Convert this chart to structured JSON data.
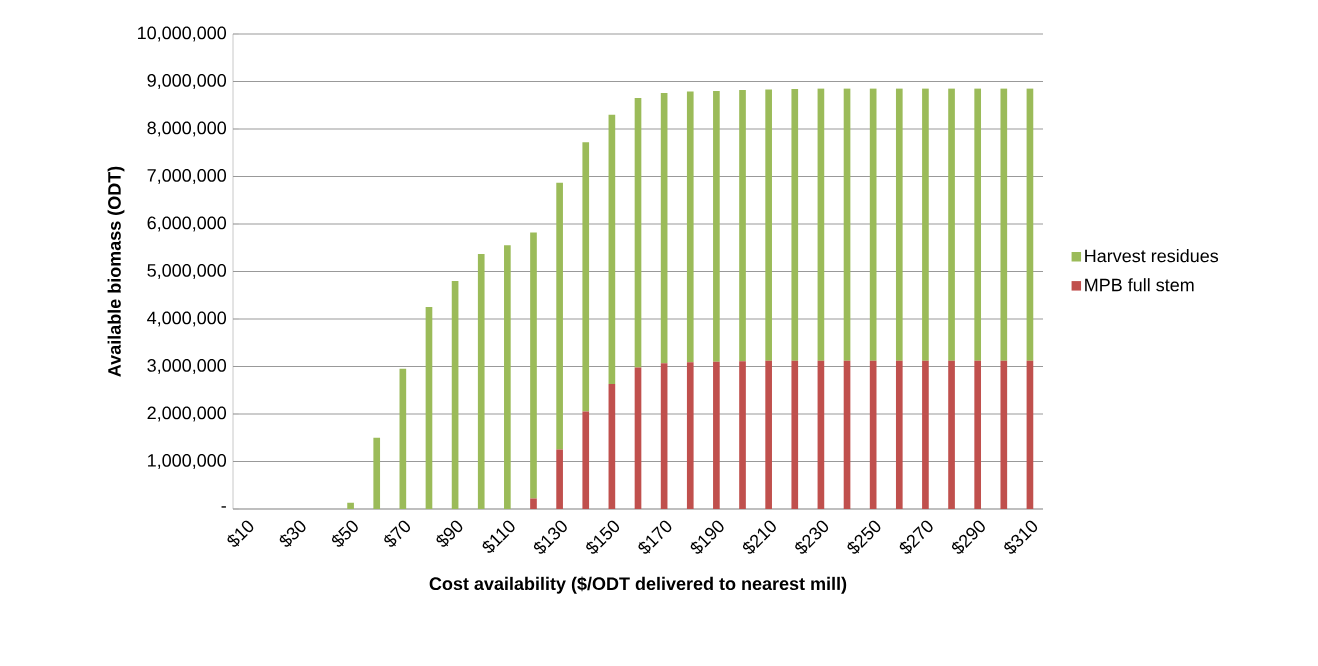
{
  "chart_data": {
    "type": "bar",
    "stacked": true,
    "xlabel": "Cost availability ($/ODT delivered to nearest mill)",
    "ylabel": "Available biomass (ODT)",
    "categories": [
      "$10",
      null,
      "$30",
      null,
      "$50",
      null,
      "$70",
      null,
      "$90",
      null,
      "$110",
      null,
      "$130",
      null,
      "$150",
      null,
      "$170",
      null,
      "$190",
      null,
      "$210",
      null,
      "$230",
      null,
      "$250",
      null,
      "$270",
      null,
      "$290",
      null,
      "$310"
    ],
    "series": [
      {
        "name": "MPB full stem",
        "color": "#c0504d",
        "values": [
          0,
          0,
          0,
          0,
          0,
          0,
          0,
          0,
          0,
          0,
          0,
          220000,
          1250000,
          2050000,
          2630000,
          2980000,
          3070000,
          3090000,
          3100000,
          3110000,
          3120000,
          3120000,
          3120000,
          3120000,
          3120000,
          3120000,
          3120000,
          3120000,
          3120000,
          3120000,
          3120000
        ]
      },
      {
        "name": "Harvest residues",
        "color": "#9bbb59",
        "values": [
          0,
          0,
          0,
          0,
          130000,
          1500000,
          2950000,
          4250000,
          4800000,
          5370000,
          5550000,
          5600000,
          5620000,
          5670000,
          5670000,
          5670000,
          5690000,
          5700000,
          5700000,
          5710000,
          5710000,
          5720000,
          5730000,
          5730000,
          5730000,
          5730000,
          5730000,
          5730000,
          5730000,
          5730000,
          5730000
        ]
      }
    ],
    "ylim": [
      0,
      10000000
    ],
    "yticks": [
      {
        "value": 0,
        "label": "-"
      },
      {
        "value": 1000000,
        "label": "1,000,000"
      },
      {
        "value": 2000000,
        "label": "2,000,000"
      },
      {
        "value": 3000000,
        "label": "3,000,000"
      },
      {
        "value": 4000000,
        "label": "4,000,000"
      },
      {
        "value": 5000000,
        "label": "5,000,000"
      },
      {
        "value": 6000000,
        "label": "6,000,000"
      },
      {
        "value": 7000000,
        "label": "7,000,000"
      },
      {
        "value": 8000000,
        "label": "8,000,000"
      },
      {
        "value": 9000000,
        "label": "9,000,000"
      },
      {
        "value": 10000000,
        "label": "10,000,000"
      }
    ],
    "grid": "y",
    "legend": "right"
  }
}
